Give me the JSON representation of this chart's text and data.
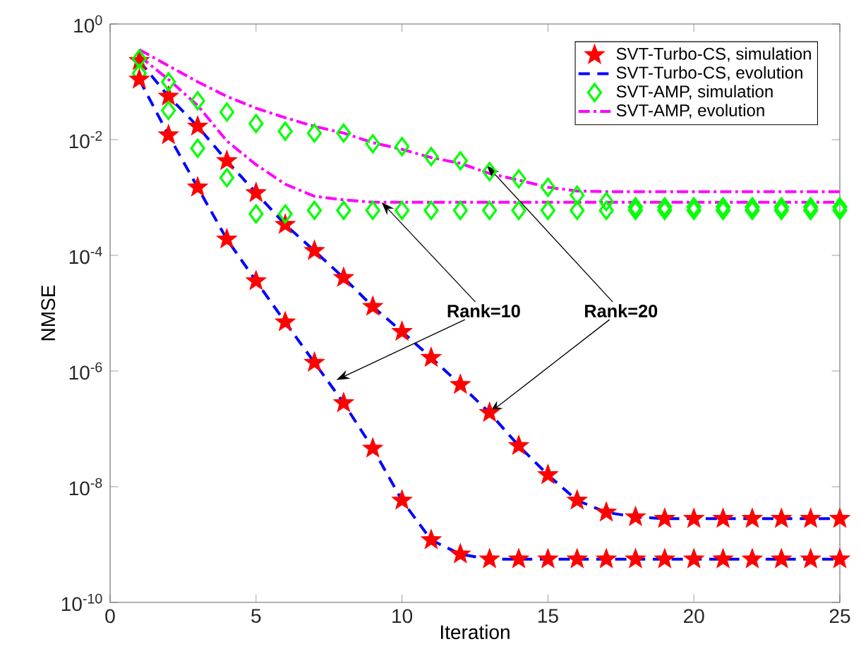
{
  "chart_data": {
    "type": "line",
    "xlabel": "Iteration",
    "ylabel": "NMSE",
    "log": "y",
    "legend": "top right",
    "x": [
      1,
      2,
      3,
      4,
      5,
      6,
      7,
      8,
      9,
      10,
      11,
      12,
      13,
      14,
      15,
      16,
      17,
      18,
      19,
      20,
      21,
      22,
      23,
      24,
      25
    ],
    "xlim": [
      0,
      25
    ],
    "xticks": [
      0,
      5,
      10,
      15,
      20,
      25
    ],
    "ylim": [
      1e-10,
      1
    ],
    "yticks": [
      {
        "value": 1e-10,
        "label": "10$^{-10}$"
      },
      {
        "value": 1e-08,
        "label": "10$^{-8}$"
      },
      {
        "value": 1e-06,
        "label": "10$^{-6}$"
      },
      {
        "value": 0.0001,
        "label": "10$^{-4}$"
      },
      {
        "value": 0.01,
        "label": "10$^{-2}$"
      },
      {
        "value": 1,
        "label": "10$^{0}$"
      }
    ],
    "series": [
      {
        "name": "SVT-Turbo-CS, simulation",
        "type": "scatter",
        "marker": "star",
        "color": "#ff0000",
        "values": [
          0.23,
          0.056,
          0.017,
          0.0043,
          0.0012,
          0.00034,
          0.00012,
          4.1e-05,
          1.3e-05,
          4.8e-06,
          1.7e-06,
          5.8e-07,
          1.9e-07,
          5.1e-08,
          1.6e-08,
          5.8e-09,
          3.6e-09,
          3e-09,
          2.8e-09,
          2.8e-09,
          2.8e-09,
          2.8e-09,
          2.8e-09,
          2.8e-09,
          2.8e-09
        ]
      },
      {
        "name": "SVT-Turbo-CS, evolution",
        "line_style": "dashed",
        "color": "#0000ff",
        "values": [
          0.23,
          0.056,
          0.017,
          0.0043,
          0.0012,
          0.00034,
          0.00012,
          4.1e-05,
          1.3e-05,
          4.8e-06,
          1.7e-06,
          5.8e-07,
          1.9e-07,
          5.1e-08,
          1.6e-08,
          5.8e-09,
          3.6e-09,
          3e-09,
          2.8e-09,
          2.8e-09,
          2.8e-09,
          2.8e-09,
          2.8e-09,
          2.8e-09,
          2.8e-09
        ]
      },
      {
        "name": "SVT-AMP, simulation",
        "type": "scatter",
        "marker": "diamond",
        "color": "#00ff00",
        "values": [
          0.25,
          0.1,
          0.047,
          0.03,
          0.019,
          0.014,
          0.013,
          0.013,
          0.0085,
          0.0076,
          0.0051,
          0.0043,
          0.0028,
          0.0021,
          0.0015,
          0.0011,
          0.00085,
          0.00069,
          0.00069,
          0.00069,
          0.00069,
          0.00069,
          0.00069,
          0.00069,
          0.00069
        ]
      },
      {
        "name": "SVT-AMP, evolution",
        "line_style": "dashdot",
        "color": "#ff00ff",
        "values": [
          0.36,
          0.19,
          0.1,
          0.056,
          0.035,
          0.024,
          0.017,
          0.013,
          0.0089,
          0.0068,
          0.0049,
          0.0039,
          0.0026,
          0.002,
          0.0015,
          0.0013,
          0.00126,
          0.00126,
          0.00126,
          0.00126,
          0.00126,
          0.00126,
          0.00126,
          0.00126,
          0.00126
        ]
      },
      {
        "line_style": "dashdot",
        "color": "#ff00ff",
        "values": [
          0.28,
          0.11,
          0.039,
          0.0095,
          0.0037,
          0.0017,
          0.00105,
          0.00091,
          0.00083,
          0.00083,
          0.00083,
          0.00083,
          0.00083,
          0.00083,
          0.00083,
          0.00083,
          0.00083,
          0.00083,
          0.00083,
          0.00083,
          0.00083,
          0.00083,
          0.00083,
          0.00083,
          0.00083
        ]
      },
      {
        "line_style": "dashed",
        "color": "#0000ff",
        "values": [
          0.11,
          0.012,
          0.0015,
          0.00019,
          3.6e-05,
          7e-06,
          1.4e-06,
          2.8e-07,
          4.6e-08,
          5.8e-09,
          1.2e-09,
          6.8e-10,
          5.6e-10,
          5.6e-10,
          5.6e-10,
          5.6e-10,
          5.6e-10,
          5.6e-10,
          5.6e-10,
          5.6e-10,
          5.6e-10,
          5.6e-10,
          5.6e-10,
          5.6e-10,
          5.6e-10
        ]
      },
      {
        "type": "scatter",
        "marker": "diamond",
        "color": "#00ff00",
        "values": [
          0.14,
          0.032,
          0.0071,
          0.0022,
          0.00052,
          0.00052,
          0.0006,
          0.0006,
          0.0006,
          0.0006,
          0.0006,
          0.0006,
          0.0006,
          0.0006,
          0.0006,
          0.0006,
          0.0006,
          0.0006,
          0.0006,
          0.0006,
          0.0006,
          0.0006,
          0.0006,
          0.0006,
          0.0006
        ]
      },
      {
        "type": "scatter",
        "marker": "star",
        "color": "#ff0000",
        "values": [
          0.11,
          0.012,
          0.0015,
          0.00019,
          3.6e-05,
          7e-06,
          1.4e-06,
          2.8e-07,
          4.6e-08,
          5.8e-09,
          1.2e-09,
          6.8e-10,
          5.6e-10,
          5.6e-10,
          5.6e-10,
          5.6e-10,
          5.6e-10,
          5.6e-10,
          5.6e-10,
          5.6e-10,
          5.6e-10,
          5.6e-10,
          5.6e-10,
          5.6e-10,
          5.6e-10
        ]
      }
    ],
    "annotations": [
      {
        "text": "Rank=10",
        "x": 9.3,
        "y": 0.00083
      },
      {
        "text": "Rank=20",
        "x": 13,
        "y": 1.9e-07
      }
    ]
  }
}
